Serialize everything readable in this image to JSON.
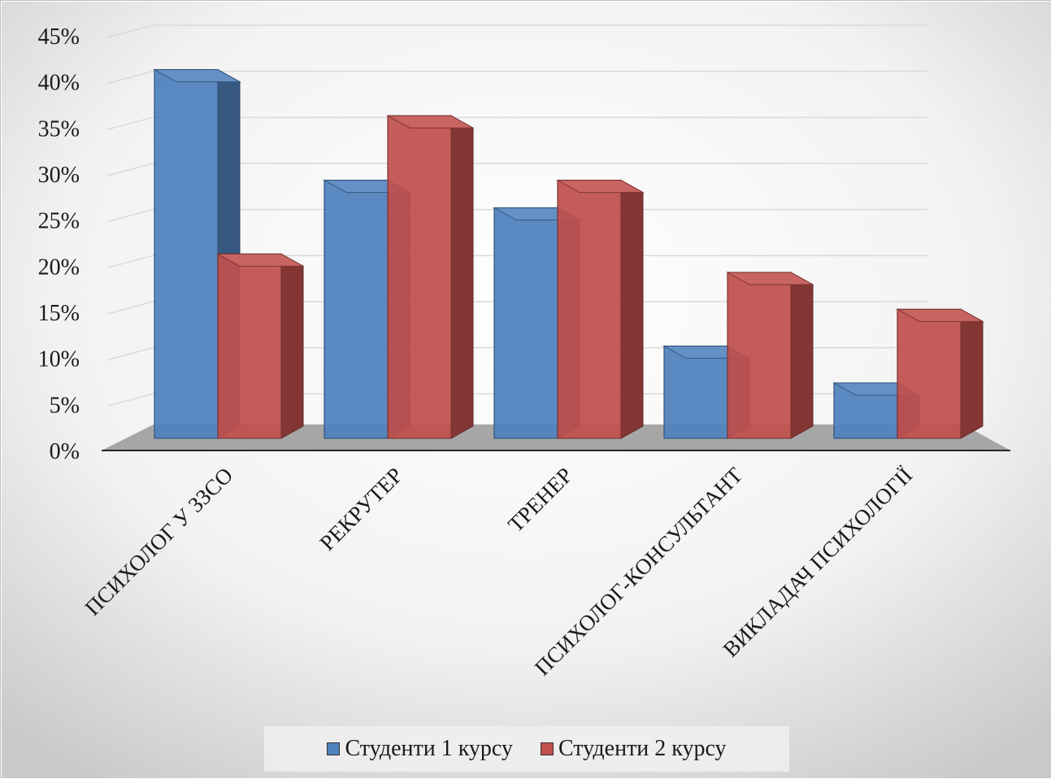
{
  "chart_data": {
    "type": "bar",
    "title": "",
    "xlabel": "",
    "ylabel": "",
    "ylim": [
      0,
      45
    ],
    "y_ticks": [
      0,
      5,
      10,
      15,
      20,
      25,
      30,
      35,
      40,
      45
    ],
    "y_tick_labels": [
      "0%",
      "5%",
      "10%",
      "15%",
      "20%",
      "25%",
      "30%",
      "35%",
      "40%",
      "45%"
    ],
    "categories": [
      "ПСИХОЛОГ У ЗЗСО",
      "РЕКРУТЕР",
      "ТРЕНЕР",
      "ПСИХОЛОГ-КОНСУЛЬТАНТ",
      "ВИКЛАДАЧ ПСИХОЛОГІЇ"
    ],
    "series": [
      {
        "name": "Студенти 1 курсу",
        "values": [
          40,
          28,
          25,
          10,
          6
        ],
        "color": "#4f81bd"
      },
      {
        "name": "Студенти 2 курсу",
        "values": [
          20,
          35,
          28,
          18,
          14
        ],
        "color": "#c0504d"
      }
    ],
    "grid": true,
    "legend_position": "bottom",
    "style": "3d-clustered-column"
  }
}
